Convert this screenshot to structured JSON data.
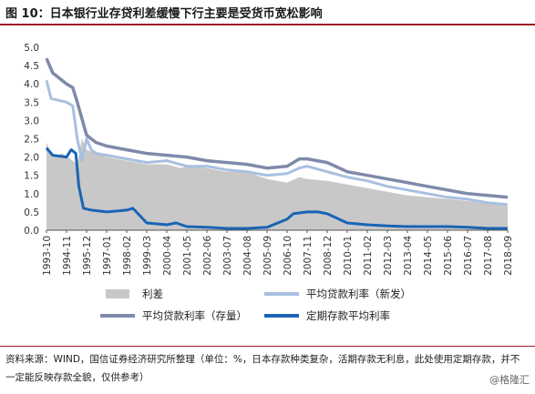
{
  "figure": {
    "title": "图 10：日本银行业存贷利差缓慢下行主要是受货币宽松影响",
    "source_note": "资料来源：WIND，国信证券经济研究所整理（单位：%，日本存款种类复杂，活期存款无利息，此处使用定期存款，并不一定能反映存款全貌，仅供参考）",
    "watermark": "@格隆汇"
  },
  "colors": {
    "spread_fill": "#c8c8c8",
    "new_loan_rate": "#a8c0e0",
    "outstanding_loan_rate": "#7f8aaa",
    "deposit_rate": "#1a64b4",
    "title_rule": "#9c1c22"
  },
  "chart_data": {
    "type": "line",
    "x_labels": [
      "1993-10",
      "1994-11",
      "1995-12",
      "1997-01",
      "1998-02",
      "1999-03",
      "2000-04",
      "2001-05",
      "2002-06",
      "2003-07",
      "2004-08",
      "2005-09",
      "2006-10",
      "2007-11",
      "2008-12",
      "2010-01",
      "2011-02",
      "2012-03",
      "2013-04",
      "2014-05",
      "2015-06",
      "2016-07",
      "2017-08",
      "2018-09"
    ],
    "ylim": [
      0,
      5
    ],
    "yticks": [
      0.0,
      0.5,
      1.0,
      1.5,
      2.0,
      2.5,
      3.0,
      3.5,
      4.0,
      4.5,
      5.0
    ],
    "grid": false,
    "legend_position": "bottom",
    "series": [
      {
        "name": "利差",
        "style": "area",
        "color_key": "spread_fill",
        "points": [
          [
            "1993-10",
            2.4
          ],
          [
            "1994-02",
            2.0
          ],
          [
            "1994-08",
            2.1
          ],
          [
            "1994-12",
            2.0
          ],
          [
            "1995-03",
            1.9
          ],
          [
            "1995-06",
            1.8
          ],
          [
            "1995-09",
            2.5
          ],
          [
            "1995-12",
            2.2
          ],
          [
            "1996-06",
            2.1
          ],
          [
            "1997-01",
            2.0
          ],
          [
            "1998-02",
            1.9
          ],
          [
            "1999-03",
            1.8
          ],
          [
            "2000-04",
            1.8
          ],
          [
            "2001-01",
            1.7
          ],
          [
            "2001-05",
            1.75
          ],
          [
            "2002-06",
            1.7
          ],
          [
            "2003-07",
            1.6
          ],
          [
            "2004-08",
            1.6
          ],
          [
            "2005-09",
            1.4
          ],
          [
            "2006-10",
            1.3
          ],
          [
            "2007-06",
            1.45
          ],
          [
            "2007-11",
            1.4
          ],
          [
            "2008-12",
            1.35
          ],
          [
            "2010-01",
            1.25
          ],
          [
            "2011-02",
            1.15
          ],
          [
            "2012-03",
            1.05
          ],
          [
            "2013-04",
            0.95
          ],
          [
            "2014-05",
            0.9
          ],
          [
            "2015-06",
            0.85
          ],
          [
            "2016-07",
            0.8
          ],
          [
            "2017-08",
            0.75
          ],
          [
            "2018-09",
            0.7
          ]
        ]
      },
      {
        "name": "平均贷款利率（新发）",
        "style": "line",
        "color_key": "new_loan_rate",
        "points": [
          [
            "1993-10",
            4.1
          ],
          [
            "1994-01",
            3.6
          ],
          [
            "1994-06",
            3.55
          ],
          [
            "1994-11",
            3.5
          ],
          [
            "1995-03",
            3.4
          ],
          [
            "1995-06",
            2.5
          ],
          [
            "1995-09",
            1.9
          ],
          [
            "1995-12",
            2.5
          ],
          [
            "1996-03",
            2.2
          ],
          [
            "1996-06",
            2.1
          ],
          [
            "1997-01",
            2.05
          ],
          [
            "1998-02",
            1.95
          ],
          [
            "1999-03",
            1.85
          ],
          [
            "2000-04",
            1.9
          ],
          [
            "2001-05",
            1.75
          ],
          [
            "2002-06",
            1.75
          ],
          [
            "2003-07",
            1.65
          ],
          [
            "2004-08",
            1.6
          ],
          [
            "2005-09",
            1.5
          ],
          [
            "2006-10",
            1.55
          ],
          [
            "2007-06",
            1.7
          ],
          [
            "2007-11",
            1.75
          ],
          [
            "2008-12",
            1.6
          ],
          [
            "2010-01",
            1.45
          ],
          [
            "2011-02",
            1.35
          ],
          [
            "2012-03",
            1.2
          ],
          [
            "2013-04",
            1.1
          ],
          [
            "2014-05",
            1.0
          ],
          [
            "2015-06",
            0.9
          ],
          [
            "2016-07",
            0.85
          ],
          [
            "2017-08",
            0.75
          ],
          [
            "2018-09",
            0.7
          ]
        ]
      },
      {
        "name": "平均贷款利率（存量）",
        "style": "line",
        "color_key": "outstanding_loan_rate",
        "points": [
          [
            "1993-10",
            4.7
          ],
          [
            "1994-02",
            4.3
          ],
          [
            "1994-11",
            4.0
          ],
          [
            "1995-03",
            3.9
          ],
          [
            "1995-06",
            3.5
          ],
          [
            "1995-12",
            2.6
          ],
          [
            "1996-06",
            2.4
          ],
          [
            "1997-01",
            2.3
          ],
          [
            "1998-02",
            2.2
          ],
          [
            "1999-03",
            2.1
          ],
          [
            "2000-04",
            2.05
          ],
          [
            "2001-05",
            2.0
          ],
          [
            "2002-06",
            1.9
          ],
          [
            "2003-07",
            1.85
          ],
          [
            "2004-08",
            1.8
          ],
          [
            "2005-09",
            1.7
          ],
          [
            "2006-10",
            1.75
          ],
          [
            "2007-06",
            1.95
          ],
          [
            "2007-11",
            1.95
          ],
          [
            "2008-12",
            1.85
          ],
          [
            "2010-01",
            1.6
          ],
          [
            "2011-02",
            1.5
          ],
          [
            "2012-03",
            1.4
          ],
          [
            "2013-04",
            1.3
          ],
          [
            "2014-05",
            1.2
          ],
          [
            "2015-06",
            1.1
          ],
          [
            "2016-07",
            1.0
          ],
          [
            "2017-08",
            0.95
          ],
          [
            "2018-09",
            0.9
          ]
        ]
      },
      {
        "name": "定期存款平均利率",
        "style": "line",
        "color_key": "deposit_rate",
        "points": [
          [
            "1993-10",
            2.25
          ],
          [
            "1994-02",
            2.05
          ],
          [
            "1994-11",
            2.0
          ],
          [
            "1995-02",
            2.2
          ],
          [
            "1995-05",
            2.1
          ],
          [
            "1995-07",
            1.2
          ],
          [
            "1995-10",
            0.6
          ],
          [
            "1996-03",
            0.55
          ],
          [
            "1997-01",
            0.5
          ],
          [
            "1998-02",
            0.55
          ],
          [
            "1998-06",
            0.6
          ],
          [
            "1999-03",
            0.2
          ],
          [
            "2000-04",
            0.15
          ],
          [
            "2000-10",
            0.2
          ],
          [
            "2001-05",
            0.1
          ],
          [
            "2002-06",
            0.08
          ],
          [
            "2003-07",
            0.05
          ],
          [
            "2004-08",
            0.05
          ],
          [
            "2005-09",
            0.08
          ],
          [
            "2006-10",
            0.3
          ],
          [
            "2007-02",
            0.45
          ],
          [
            "2007-11",
            0.5
          ],
          [
            "2008-06",
            0.5
          ],
          [
            "2008-12",
            0.45
          ],
          [
            "2010-01",
            0.2
          ],
          [
            "2011-02",
            0.15
          ],
          [
            "2012-03",
            0.12
          ],
          [
            "2013-04",
            0.1
          ],
          [
            "2014-05",
            0.1
          ],
          [
            "2015-06",
            0.1
          ],
          [
            "2016-07",
            0.08
          ],
          [
            "2017-08",
            0.05
          ],
          [
            "2018-09",
            0.05
          ]
        ]
      }
    ]
  }
}
